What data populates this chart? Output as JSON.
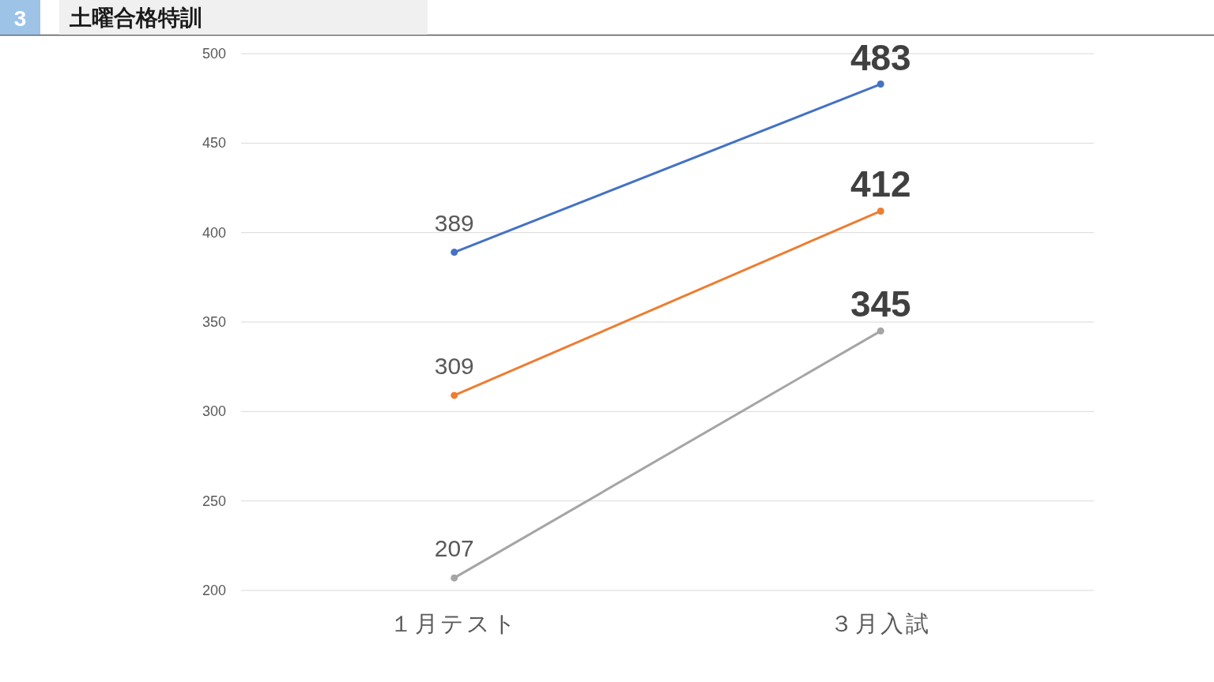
{
  "chart_data": {
    "type": "line",
    "title": "土曜合格特訓",
    "annotations": [
      "3"
    ],
    "categories": [
      "１月テスト",
      "３月入試"
    ],
    "series": [
      {
        "color": "#4472c4",
        "values": [
          389,
          483
        ]
      },
      {
        "color": "#ed7d31",
        "values": [
          309,
          412
        ]
      },
      {
        "color": "#a5a5a5",
        "values": [
          207,
          345
        ]
      }
    ],
    "ylim": [
      200,
      500
    ],
    "yticks": [
      200,
      250,
      300,
      350,
      400,
      450,
      500
    ],
    "grid": "y",
    "marker": "circle",
    "line_style": "solid",
    "data_labels": true
  }
}
